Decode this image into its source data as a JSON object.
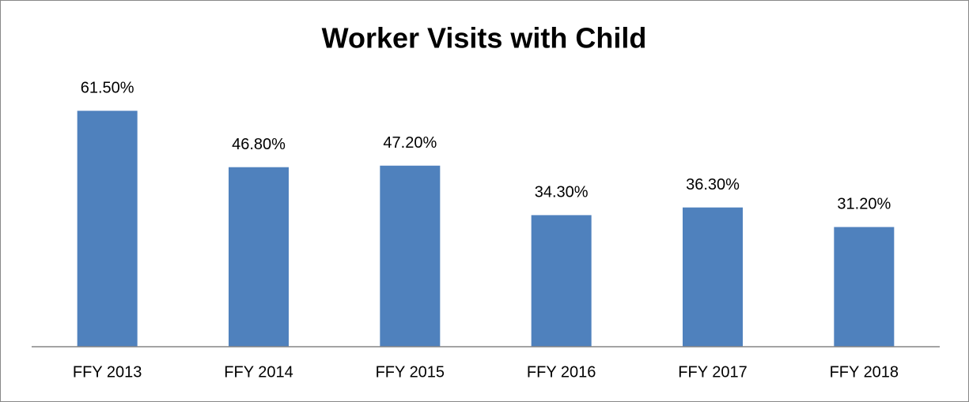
{
  "chart_data": {
    "type": "bar",
    "title": "Worker Visits with Child",
    "categories": [
      "FFY 2013",
      "FFY 2014",
      "FFY 2015",
      "FFY 2016",
      "FFY 2017",
      "FFY 2018"
    ],
    "values": [
      61.5,
      46.8,
      47.2,
      34.3,
      36.3,
      31.2
    ],
    "value_labels": [
      "61.50%",
      "46.80%",
      "47.20%",
      "34.30%",
      "36.30%",
      "31.20%"
    ],
    "color": "#4f81bd",
    "ylim": [
      0,
      70
    ]
  }
}
